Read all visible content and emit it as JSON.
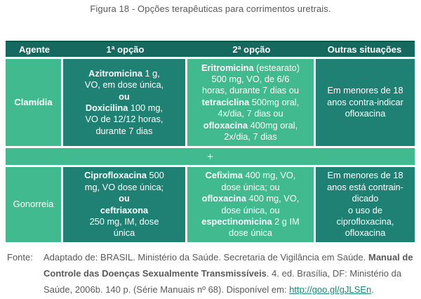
{
  "title": "Figura 18 - Opções terapêuticas para corrimentos uretrais.",
  "colors": {
    "header_bg": "#16695f",
    "dark_cell_bg": "#1f8173",
    "light_cell_bg": "#41ba8f",
    "cell_text": "#ffffff",
    "title_text": "#58595b",
    "footer_text": "#58595b",
    "link": "#1d8573"
  },
  "table": {
    "headers": {
      "agente": "Agente",
      "opcao1": "1ª opção",
      "opcao2": "2ª opção",
      "outras": "Outras situações"
    },
    "plus_label": "+",
    "rows": [
      {
        "agent": "Clamídia",
        "option1": [
          {
            "t": "Azitromicina",
            "b": true
          },
          {
            "t": " 1 g,"
          },
          {
            "br": true
          },
          {
            "t": "VO, em dose única,"
          },
          {
            "br": true
          },
          {
            "t": "ou",
            "b": true
          },
          {
            "br": true
          },
          {
            "t": "Doxicilina",
            "b": true
          },
          {
            "t": " 100 mg,"
          },
          {
            "br": true
          },
          {
            "t": "VO de 12/12 horas,"
          },
          {
            "br": true
          },
          {
            "t": "durante 7 dias"
          }
        ],
        "option2": [
          {
            "t": "Eritromicina",
            "b": true
          },
          {
            "t": " (estearato)"
          },
          {
            "br": true
          },
          {
            "t": "500 mg, VO, de 6/6"
          },
          {
            "br": true
          },
          {
            "t": "horas, durante 7 dias ou"
          },
          {
            "br": true
          },
          {
            "t": "tetraciclina",
            "b": true
          },
          {
            "t": " 500mg oral,"
          },
          {
            "br": true
          },
          {
            "t": "4x/dia, 7 dias ou"
          },
          {
            "br": true
          },
          {
            "t": "ofloxacina",
            "b": true
          },
          {
            "t": " 400mg oral,"
          },
          {
            "br": true
          },
          {
            "t": "2x/dia, 7 dias"
          }
        ],
        "other": [
          {
            "t": "Em menores de 18"
          },
          {
            "br": true
          },
          {
            "t": "anos contra-indicar"
          },
          {
            "br": true
          },
          {
            "t": "ofloxacina"
          }
        ]
      },
      {
        "agent": "Gonorreia",
        "option1": [
          {
            "t": "Ciprofloxacina",
            "b": true
          },
          {
            "t": " 500"
          },
          {
            "br": true
          },
          {
            "t": "mg, VO dose única;"
          },
          {
            "br": true
          },
          {
            "t": "ou",
            "b": true
          },
          {
            "br": true
          },
          {
            "t": "ceftriaxona",
            "b": true
          },
          {
            "br": true
          },
          {
            "t": "250 mg, IM, dose"
          },
          {
            "br": true
          },
          {
            "t": "única"
          }
        ],
        "option2": [
          {
            "t": "Cefixima",
            "b": true
          },
          {
            "t": " 400 mg, VO,"
          },
          {
            "br": true
          },
          {
            "t": "dose única; ou"
          },
          {
            "br": true
          },
          {
            "t": "ofloxacina",
            "b": true
          },
          {
            "t": " 400 mg, VO,"
          },
          {
            "br": true
          },
          {
            "t": "dose única, ou"
          },
          {
            "br": true
          },
          {
            "t": "espectinomicina",
            "b": true
          },
          {
            "t": " 2 g IM"
          },
          {
            "br": true
          },
          {
            "t": "dose única"
          }
        ],
        "other": [
          {
            "t": "Em menores de 18"
          },
          {
            "br": true
          },
          {
            "t": "anos está contrain-"
          },
          {
            "br": true
          },
          {
            "t": "dicado"
          },
          {
            "br": true
          },
          {
            "t": "o uso de"
          },
          {
            "br": true
          },
          {
            "t": "ciprofloxacina,"
          },
          {
            "br": true
          },
          {
            "t": "ofloxacina"
          }
        ]
      }
    ]
  },
  "footer": {
    "label": "Fonte:",
    "segments": [
      {
        "t": "Adaptado de: BRASIL. Ministério da Saúde. Secretaria de Vigilância em Saúde. "
      },
      {
        "t": "Manual de Controle das Doenças Sexualmente Transmissíveis",
        "b": true
      },
      {
        "t": ". 4. ed. Brasília, DF: Ministério da Saúde, 2006b. 140 p. (Série Manuais nº 68). Disponível em: "
      },
      {
        "t": "http://goo.gl/gJLSEn",
        "u": true
      },
      {
        "t": "."
      }
    ]
  }
}
